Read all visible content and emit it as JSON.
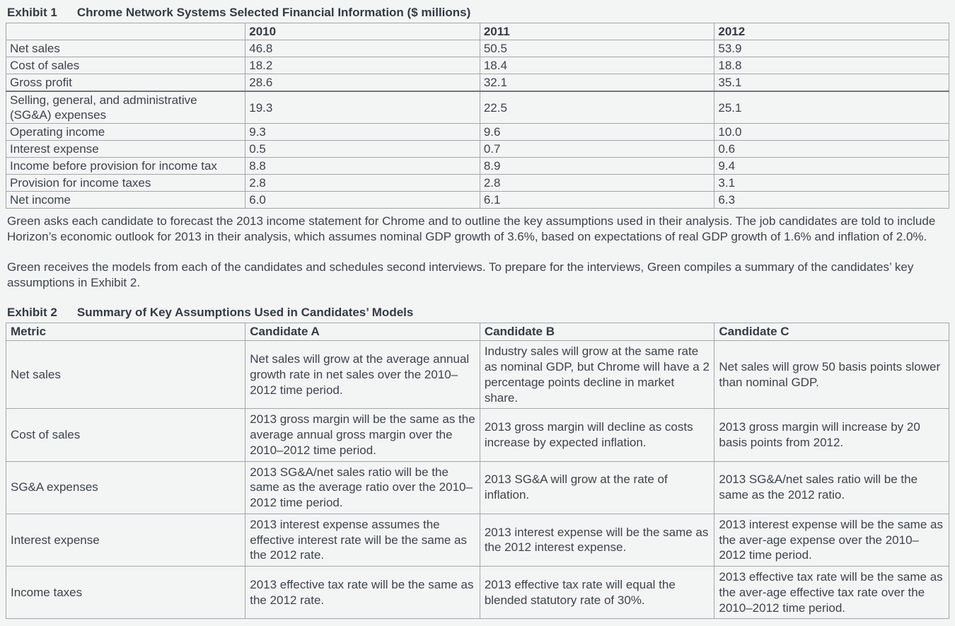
{
  "exhibit1": {
    "label": "Exhibit 1",
    "title": "Chrome Network Systems Selected Financial Information ($ millions)",
    "columns": [
      "",
      "2010",
      "2011",
      "2012"
    ],
    "rows": [
      {
        "metric": "Net sales",
        "v2010": "46.8",
        "v2011": "50.5",
        "v2012": "53.9"
      },
      {
        "metric": "Cost of sales",
        "v2010": "18.2",
        "v2011": "18.4",
        "v2012": "18.8"
      },
      {
        "metric": "Gross profit",
        "v2010": "28.6",
        "v2011": "32.1",
        "v2012": "35.1"
      },
      {
        "metric": "Selling, general, and administrative (SG&A) expenses",
        "v2010": "19.3",
        "v2011": "22.5",
        "v2012": "25.1"
      },
      {
        "metric": "Operating income",
        "v2010": "9.3",
        "v2011": "9.6",
        "v2012": "10.0"
      },
      {
        "metric": "Interest expense",
        "v2010": "0.5",
        "v2011": "0.7",
        "v2012": "0.6"
      },
      {
        "metric": "Income before provision for income tax",
        "v2010": "8.8",
        "v2011": "8.9",
        "v2012": "9.4"
      },
      {
        "metric": "Provision for income taxes",
        "v2010": "2.8",
        "v2011": "2.8",
        "v2012": "3.1"
      },
      {
        "metric": "Net income",
        "v2010": "6.0",
        "v2011": "6.1",
        "v2012": "6.3"
      }
    ]
  },
  "paragraphs": [
    "Green asks each candidate to forecast the 2013 income statement for Chrome and to outline the key assumptions used in their analysis. The job candidates are told to include Horizon’s economic outlook for 2013 in their analysis, which assumes nominal GDP growth of 3.6%, based on expectations of real GDP growth of 1.6% and inflation of 2.0%.",
    "Green receives the models from each of the candidates and schedules second interviews. To prepare for the interviews, Green compiles a summary of the candidates’ key assumptions in Exhibit 2."
  ],
  "exhibit2": {
    "label": "Exhibit 2",
    "title": "Summary of Key Assumptions Used in Candidates’ Models",
    "columns": [
      "Metric",
      "Candidate A",
      "Candidate B",
      "Candidate C"
    ],
    "rows": [
      {
        "metric": "Net sales",
        "a": "Net sales will grow at the average annual growth rate in net sales over the 2010–2012 time period.",
        "b": "Industry sales will grow at the same rate as nominal GDP, but Chrome will have a 2 percentage points decline in market share.",
        "c": "Net sales will grow 50 basis points slower than nominal GDP."
      },
      {
        "metric": "Cost of sales",
        "a": "2013 gross margin will be the same as the average annual gross margin over the 2010–2012 time period.",
        "b": "2013 gross margin will decline as costs increase by expected inflation.",
        "c": "2013 gross margin will increase by 20 basis points from 2012."
      },
      {
        "metric": "SG&A expenses",
        "a": "2013 SG&A/net sales ratio will be the same as the average ratio over the 2010–2012 time period.",
        "b": "2013 SG&A will grow at the rate of inflation.",
        "c": "2013 SG&A/net sales ratio will be the same as the 2012 ratio."
      },
      {
        "metric": "Interest expense",
        "a": "2013 interest expense assumes the effective interest rate will be the same as the 2012 rate.",
        "b": "2013 interest expense will be the same as the 2012 interest expense.",
        "c": "2013 interest expense will be the same as the aver-age expense over the 2010–2012 time period."
      },
      {
        "metric": "Income taxes",
        "a": "2013 effective tax rate will be the same as the 2012 rate.",
        "b": "2013 effective tax rate will equal the blended statutory rate of 30%.",
        "c": "2013 effective tax rate will be the same as the aver-age effective tax rate over the 2010–2012 time period."
      }
    ]
  }
}
